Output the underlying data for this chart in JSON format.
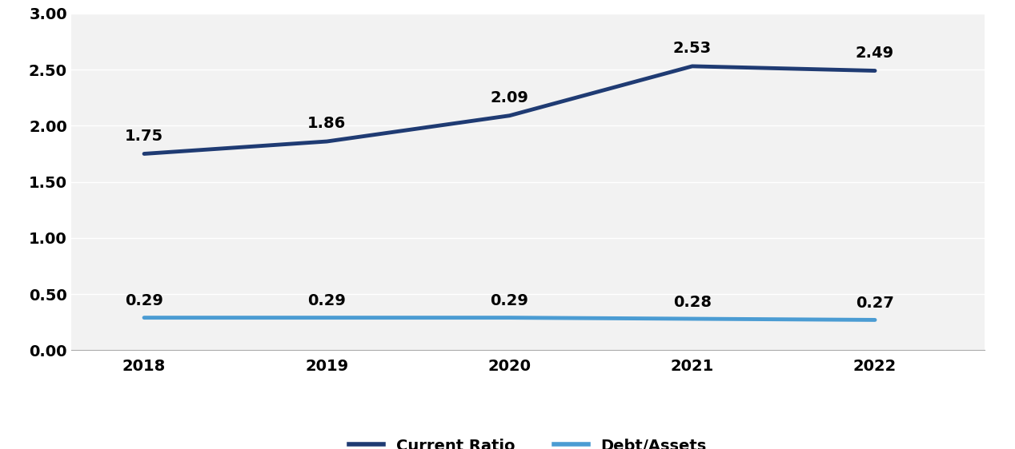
{
  "years": [
    2018,
    2019,
    2020,
    2021,
    2022
  ],
  "current_ratio": [
    1.75,
    1.86,
    2.09,
    2.53,
    2.49
  ],
  "debt_assets": [
    0.29,
    0.29,
    0.29,
    0.28,
    0.27
  ],
  "current_ratio_color": "#1F3B73",
  "debt_assets_color": "#4B9CD3",
  "current_ratio_label": "Current Ratio",
  "debt_assets_label": "Debt/Assets",
  "ylim": [
    0.0,
    3.0
  ],
  "yticks": [
    0.0,
    0.5,
    1.0,
    1.5,
    2.0,
    2.5,
    3.0
  ],
  "ytick_labels": [
    "0.00",
    "0.50",
    "1.00",
    "1.50",
    "2.00",
    "2.50",
    "3.00"
  ],
  "background_color": "#ffffff",
  "plot_bg_color": "#f2f2f2",
  "grid_color": "#ffffff",
  "line_width": 3.5,
  "annotation_fontsize": 14,
  "tick_fontsize": 14,
  "legend_fontsize": 14,
  "xlim_left": 2017.6,
  "xlim_right": 2022.6
}
